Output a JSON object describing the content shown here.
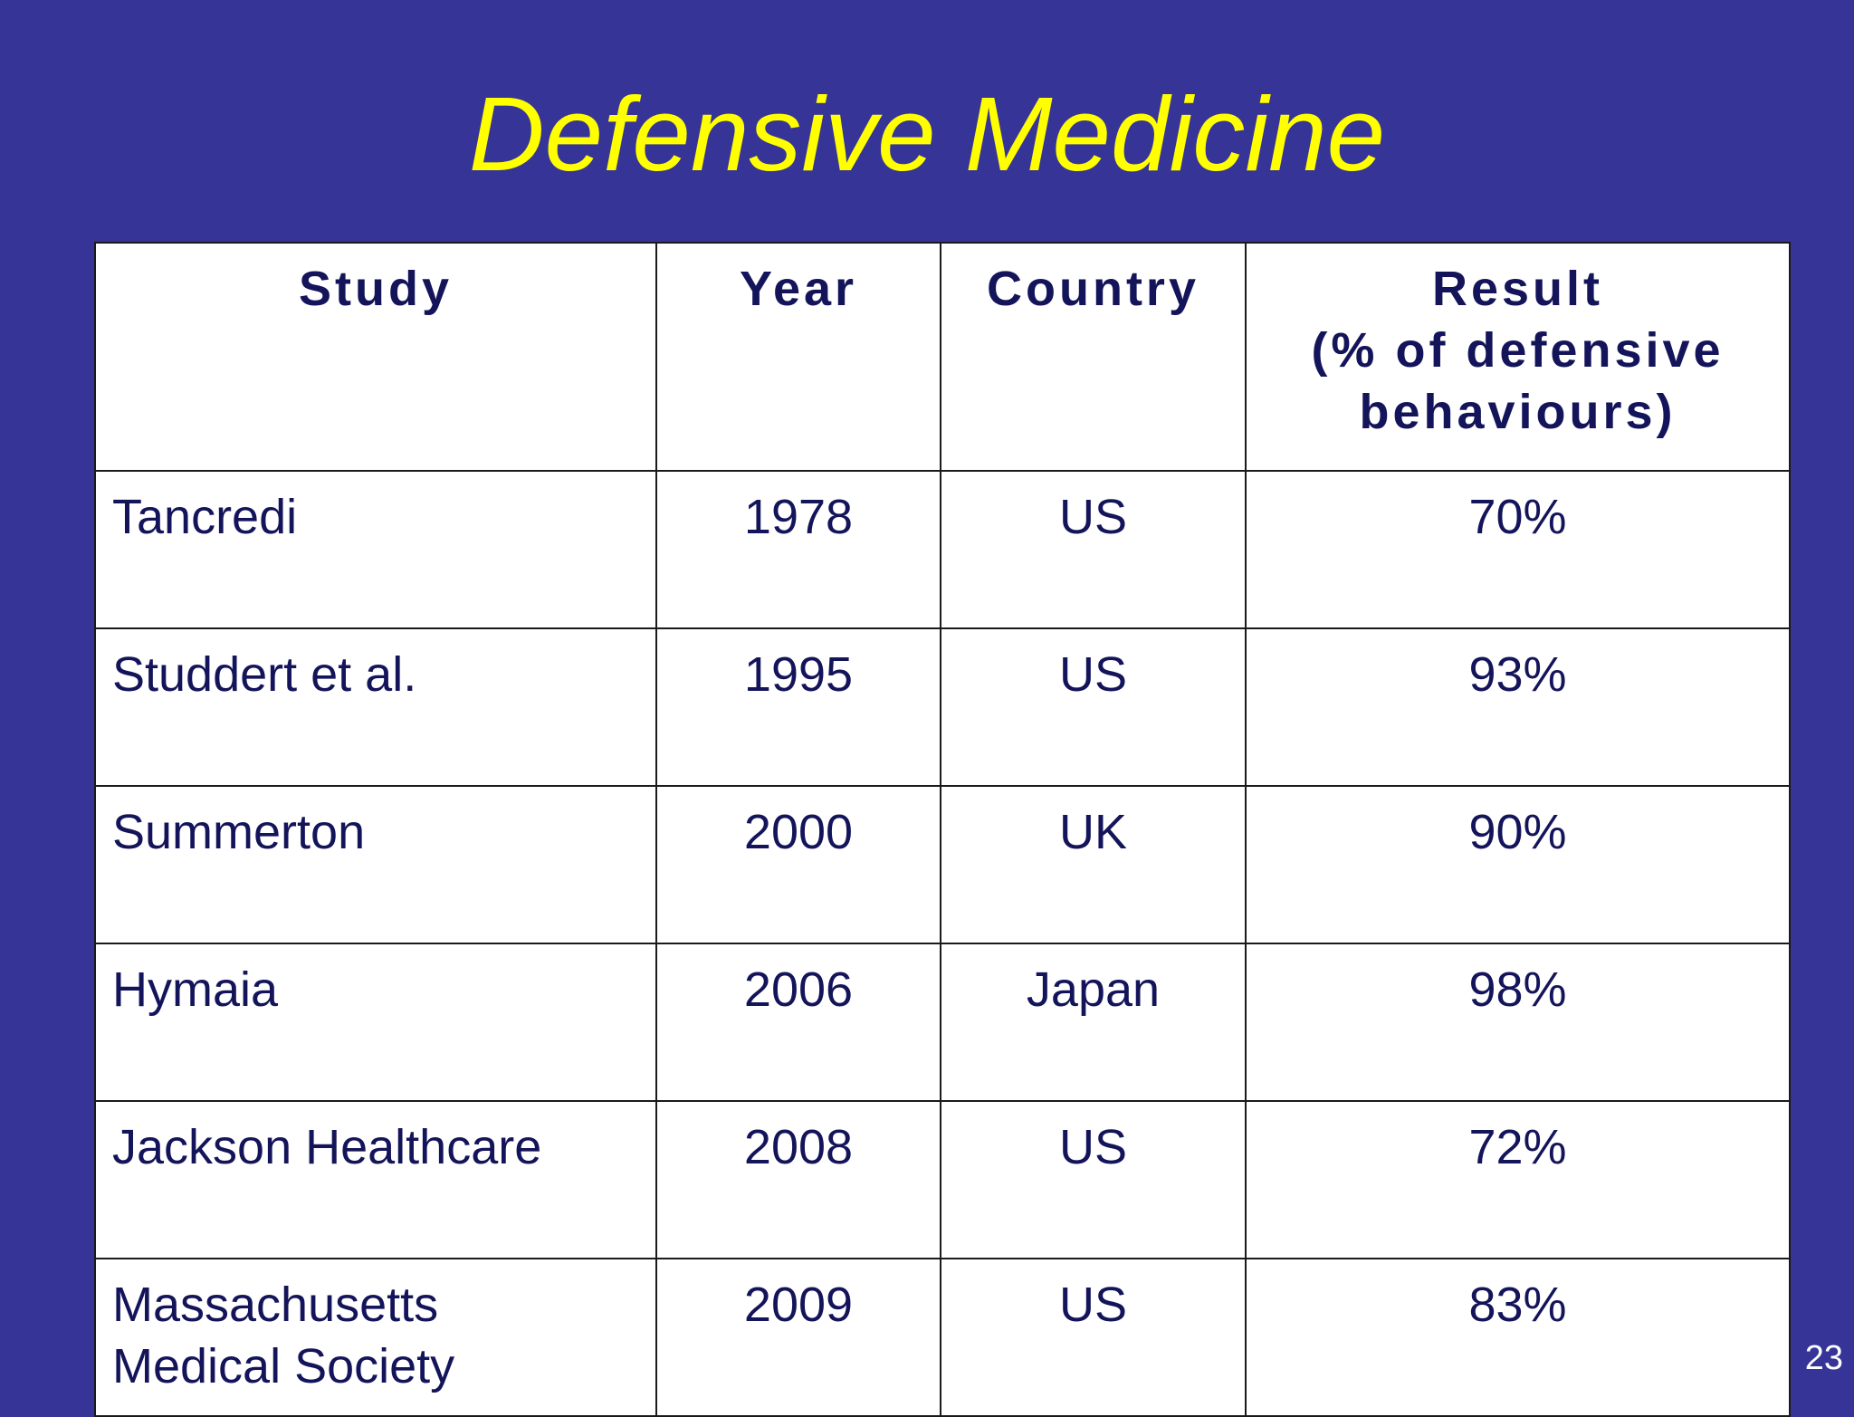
{
  "slide": {
    "title": "Defensive Medicine",
    "page_number": "23"
  },
  "colors": {
    "background": "#363497",
    "title": "#ffff00",
    "table_text": "#14145a",
    "table_background": "#ffffff"
  },
  "table": {
    "headers": {
      "study": "Study",
      "year": "Year",
      "country": "Country",
      "result_line1": "Result",
      "result_line2": "(% of defensive",
      "result_line3": "behaviours)"
    },
    "rows": [
      {
        "study_line1": "Tancredi",
        "study_line2": "",
        "year": "1978",
        "country": "US",
        "result": "70%"
      },
      {
        "study_line1": "Studdert et al.",
        "study_line2": "",
        "year": "1995",
        "country": "US",
        "result": "93%"
      },
      {
        "study_line1": "Summerton",
        "study_line2": "",
        "year": "2000",
        "country": "UK",
        "result": "90%"
      },
      {
        "study_line1": "Hymaia",
        "study_line2": "",
        "year": "2006",
        "country": "Japan",
        "result": "98%"
      },
      {
        "study_line1": "Jackson Healthcare",
        "study_line2": "",
        "year": "2008",
        "country": "US",
        "result": "72%"
      },
      {
        "study_line1": "Massachusetts",
        "study_line2": "Medical Society",
        "year": "2009",
        "country": "US",
        "result": "83%"
      }
    ]
  }
}
